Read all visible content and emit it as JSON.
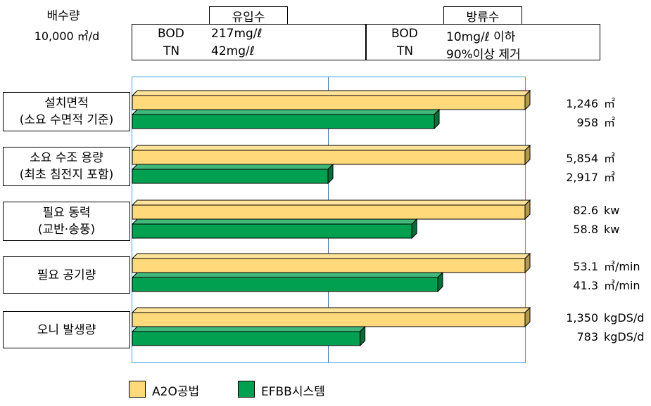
{
  "header": {
    "flow_label": "배수량",
    "flow_value": "10,000 ㎥/d",
    "influent": {
      "title": "유입수",
      "bod_label": "BOD",
      "bod_value": "217mg/ℓ",
      "tn_label": "TN",
      "tn_value": "42mg/ℓ"
    },
    "effluent": {
      "title": "방류수",
      "bod_label": "BOD",
      "bod_value": "10mg/ℓ 이하",
      "tn_label": "TN",
      "tn_value": "90%이상 제거"
    }
  },
  "chart_data": {
    "type": "bar",
    "orientation": "horizontal",
    "categories": [
      [
        "설치면적",
        "(소요 수면적 기준)"
      ],
      [
        "소요 수조 용량",
        "(최초 침전지 포함)"
      ],
      [
        "필요 동력",
        "(교반·송풍)"
      ],
      [
        "필요 공기량"
      ],
      [
        "오니 발생량"
      ]
    ],
    "series": [
      {
        "name": "A2O공법",
        "color": "#FFD97A",
        "values": [
          1246,
          5854,
          82.6,
          53.1,
          1350
        ],
        "labels": [
          "1,246",
          "5,854",
          "82.6",
          "53.1",
          "1,350"
        ]
      },
      {
        "name": "EFBB시스템",
        "color": "#00A050",
        "values": [
          958,
          2917,
          58.8,
          41.3,
          783
        ],
        "labels": [
          "958",
          "2,917",
          "58.8",
          "41.3",
          "783"
        ]
      }
    ],
    "units": [
      "㎡",
      "㎥",
      "kw",
      "㎥/min",
      "kgDS/d"
    ],
    "scale": "relative to A2O공법 (A2O = 100%)",
    "grid": true,
    "legend_position": "bottom-left"
  }
}
